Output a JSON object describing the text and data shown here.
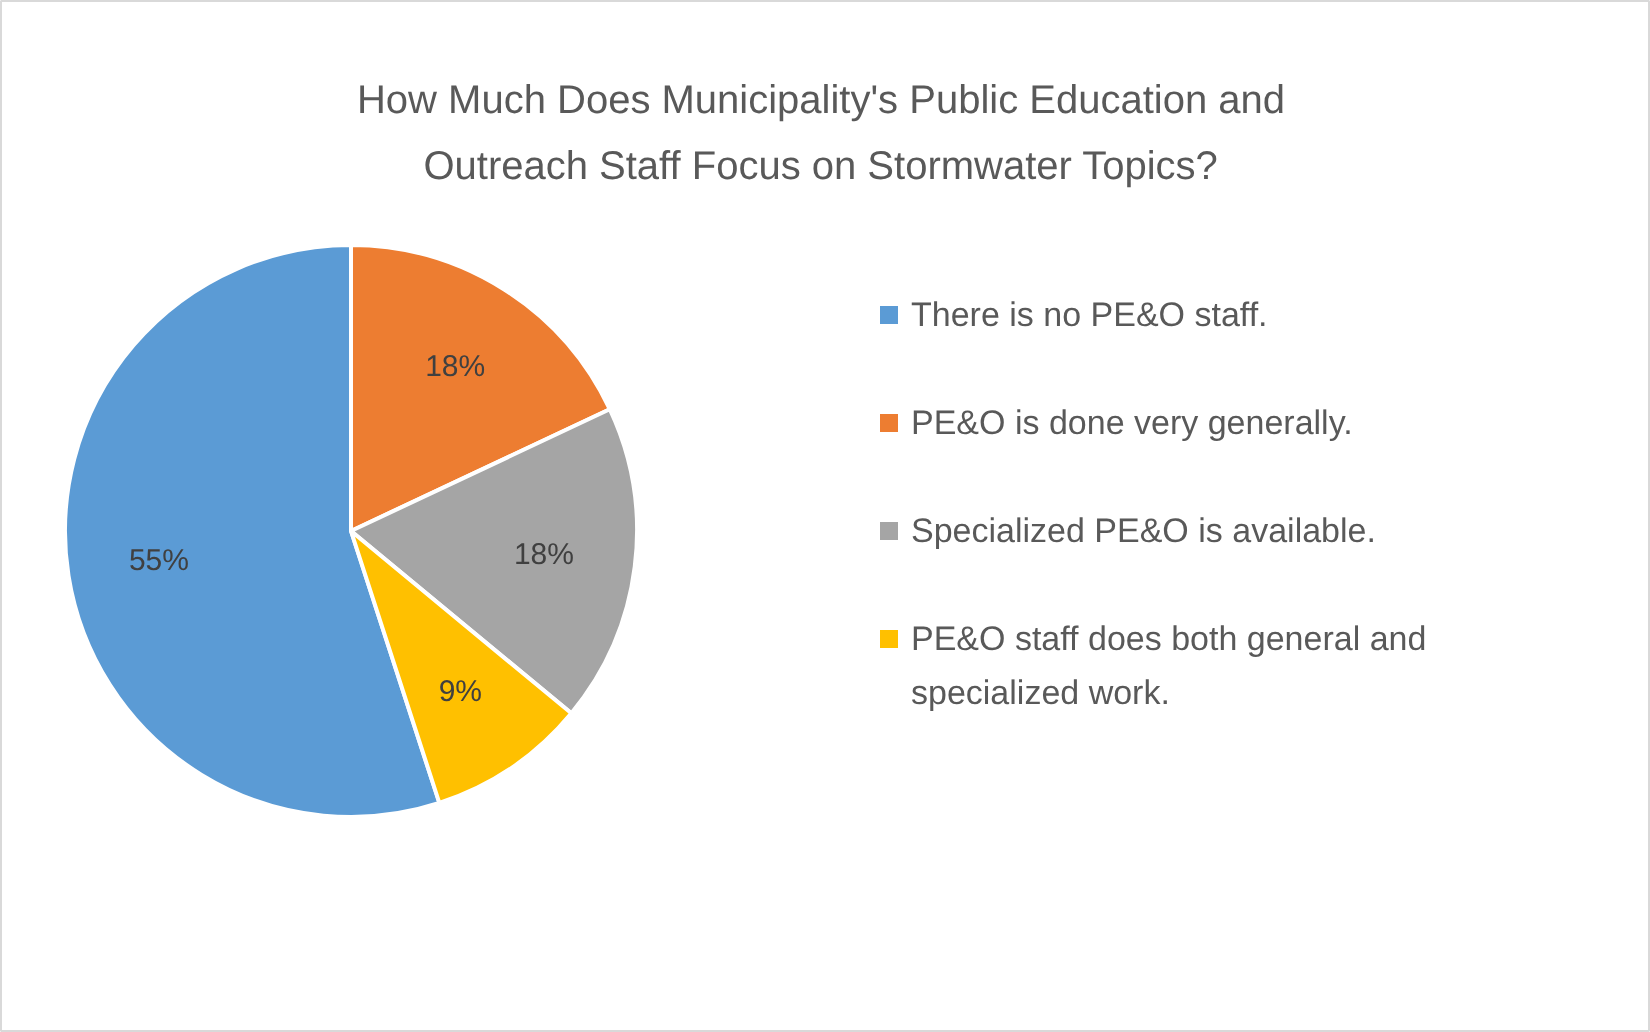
{
  "chart_data": {
    "type": "pie",
    "title": "How Much Does Municipality's Public Education and Outreach Staff Focus on Stormwater Topics?",
    "categories": [
      "There is no PE&O staff.",
      "PE&O is done very generally.",
      "Specialized PE&O is available.",
      "PE&O staff does both general and specialized work."
    ],
    "values": [
      55,
      18,
      18,
      9
    ],
    "colors": [
      "#5b9bd5",
      "#ed7d31",
      "#a5a5a5",
      "#ffc000"
    ],
    "value_labels": [
      "55%",
      "18%",
      "18%",
      "9%"
    ],
    "legend": "right"
  }
}
